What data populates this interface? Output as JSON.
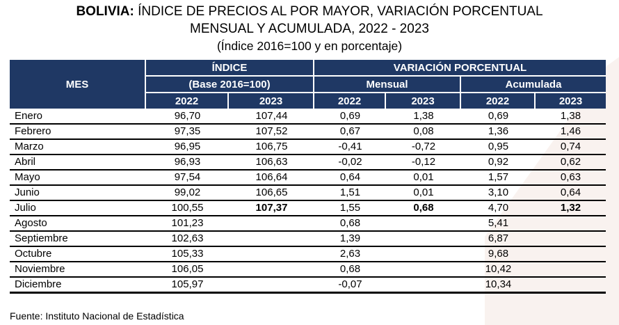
{
  "title": {
    "line1_bold": "BOLIVIA:",
    "line1_rest": " ÍNDICE DE PRECIOS AL POR MAYOR, VARIACIÓN PORCENTUAL",
    "line2": "MENSUAL Y ACUMULADA, 2022 - 2023",
    "line3": "(Índice 2016=100 y en porcentaje)"
  },
  "table": {
    "header": {
      "mes": "MES",
      "indice": "ÍNDICE",
      "indice_sub": "(Base 2016=100)",
      "variacion": "VARIACIÓN PORCENTUAL",
      "mensual": "Mensual",
      "acumulada": "Acumulada",
      "years": [
        "2022",
        "2023",
        "2022",
        "2023",
        "2022",
        "2023"
      ]
    },
    "rows": [
      {
        "mes": "Enero",
        "i2022": "96,70",
        "i2023": "107,44",
        "m2022": "0,69",
        "m2023": "1,38",
        "a2022": "0,69",
        "a2023": "1,38"
      },
      {
        "mes": "Febrero",
        "i2022": "97,35",
        "i2023": "107,52",
        "m2022": "0,67",
        "m2023": "0,08",
        "a2022": "1,36",
        "a2023": "1,46"
      },
      {
        "mes": "Marzo",
        "i2022": "96,95",
        "i2023": "106,75",
        "m2022": "-0,41",
        "m2023": "-0,72",
        "a2022": "0,95",
        "a2023": "0,74"
      },
      {
        "mes": "Abril",
        "i2022": "96,93",
        "i2023": "106,63",
        "m2022": "-0,02",
        "m2023": "-0,12",
        "a2022": "0,92",
        "a2023": "0,62"
      },
      {
        "mes": "Mayo",
        "i2022": "97,54",
        "i2023": "106,64",
        "m2022": "0,64",
        "m2023": "0,01",
        "a2022": "1,57",
        "a2023": "0,63"
      },
      {
        "mes": "Junio",
        "i2022": "99,02",
        "i2023": "106,65",
        "m2022": "1,51",
        "m2023": "0,01",
        "a2022": "3,10",
        "a2023": "0,64"
      },
      {
        "mes": "Julio",
        "i2022": "100,55",
        "i2023": "107,37",
        "m2022": "1,55",
        "m2023": "0,68",
        "a2022": "4,70",
        "a2023": "1,32"
      },
      {
        "mes": "Agosto",
        "i2022": "101,23",
        "i2023": "",
        "m2022": "0,68",
        "m2023": "",
        "a2022": "5,41",
        "a2023": ""
      },
      {
        "mes": "Septiembre",
        "i2022": "102,63",
        "i2023": "",
        "m2022": "1,39",
        "m2023": "",
        "a2022": "6,87",
        "a2023": ""
      },
      {
        "mes": "Octubre",
        "i2022": "105,33",
        "i2023": "",
        "m2022": "2,63",
        "m2023": "",
        "a2022": "9,68",
        "a2023": ""
      },
      {
        "mes": "Noviembre",
        "i2022": "106,05",
        "i2023": "",
        "m2022": "0,68",
        "m2023": "",
        "a2022": "10,42",
        "a2023": ""
      },
      {
        "mes": "Diciembre",
        "i2022": "105,97",
        "i2023": "",
        "m2022": "-0,07",
        "m2023": "",
        "a2022": "10,34",
        "a2023": ""
      }
    ]
  },
  "footer": {
    "source": "Fuente: Instituto Nacional de Estadística"
  },
  "colors": {
    "header_navy": "#1f3864",
    "row_line": "#000000",
    "accent_pink": "#f9f2ef"
  },
  "chart_data": {
    "type": "table",
    "title": "BOLIVIA: ÍNDICE DE PRECIOS AL POR MAYOR, VARIACIÓN PORCENTUAL MENSUAL Y ACUMULADA, 2022 - 2023",
    "subtitle": "(Índice 2016=100 y en porcentaje)",
    "categories": [
      "Enero",
      "Febrero",
      "Marzo",
      "Abril",
      "Mayo",
      "Junio",
      "Julio",
      "Agosto",
      "Septiembre",
      "Octubre",
      "Noviembre",
      "Diciembre"
    ],
    "series": [
      {
        "name": "Índice (Base 2016=100) 2022",
        "values": [
          96.7,
          97.35,
          96.95,
          96.93,
          97.54,
          99.02,
          100.55,
          101.23,
          102.63,
          105.33,
          106.05,
          105.97
        ]
      },
      {
        "name": "Índice (Base 2016=100) 2023",
        "values": [
          107.44,
          107.52,
          106.75,
          106.63,
          106.64,
          106.65,
          107.37,
          null,
          null,
          null,
          null,
          null
        ]
      },
      {
        "name": "Variación porcentual mensual 2022",
        "values": [
          0.69,
          0.67,
          -0.41,
          -0.02,
          0.64,
          1.51,
          1.55,
          0.68,
          1.39,
          2.63,
          0.68,
          -0.07
        ]
      },
      {
        "name": "Variación porcentual mensual 2023",
        "values": [
          1.38,
          0.08,
          -0.72,
          -0.12,
          0.01,
          0.01,
          0.68,
          null,
          null,
          null,
          null,
          null
        ]
      },
      {
        "name": "Variación porcentual acumulada 2022",
        "values": [
          0.69,
          1.36,
          0.95,
          0.92,
          1.57,
          3.1,
          4.7,
          5.41,
          6.87,
          9.68,
          10.42,
          10.34
        ]
      },
      {
        "name": "Variación porcentual acumulada 2023",
        "values": [
          1.38,
          1.46,
          0.74,
          0.62,
          0.63,
          0.64,
          1.32,
          null,
          null,
          null,
          null,
          null
        ]
      }
    ],
    "source": "Fuente: Instituto Nacional de Estadística"
  }
}
